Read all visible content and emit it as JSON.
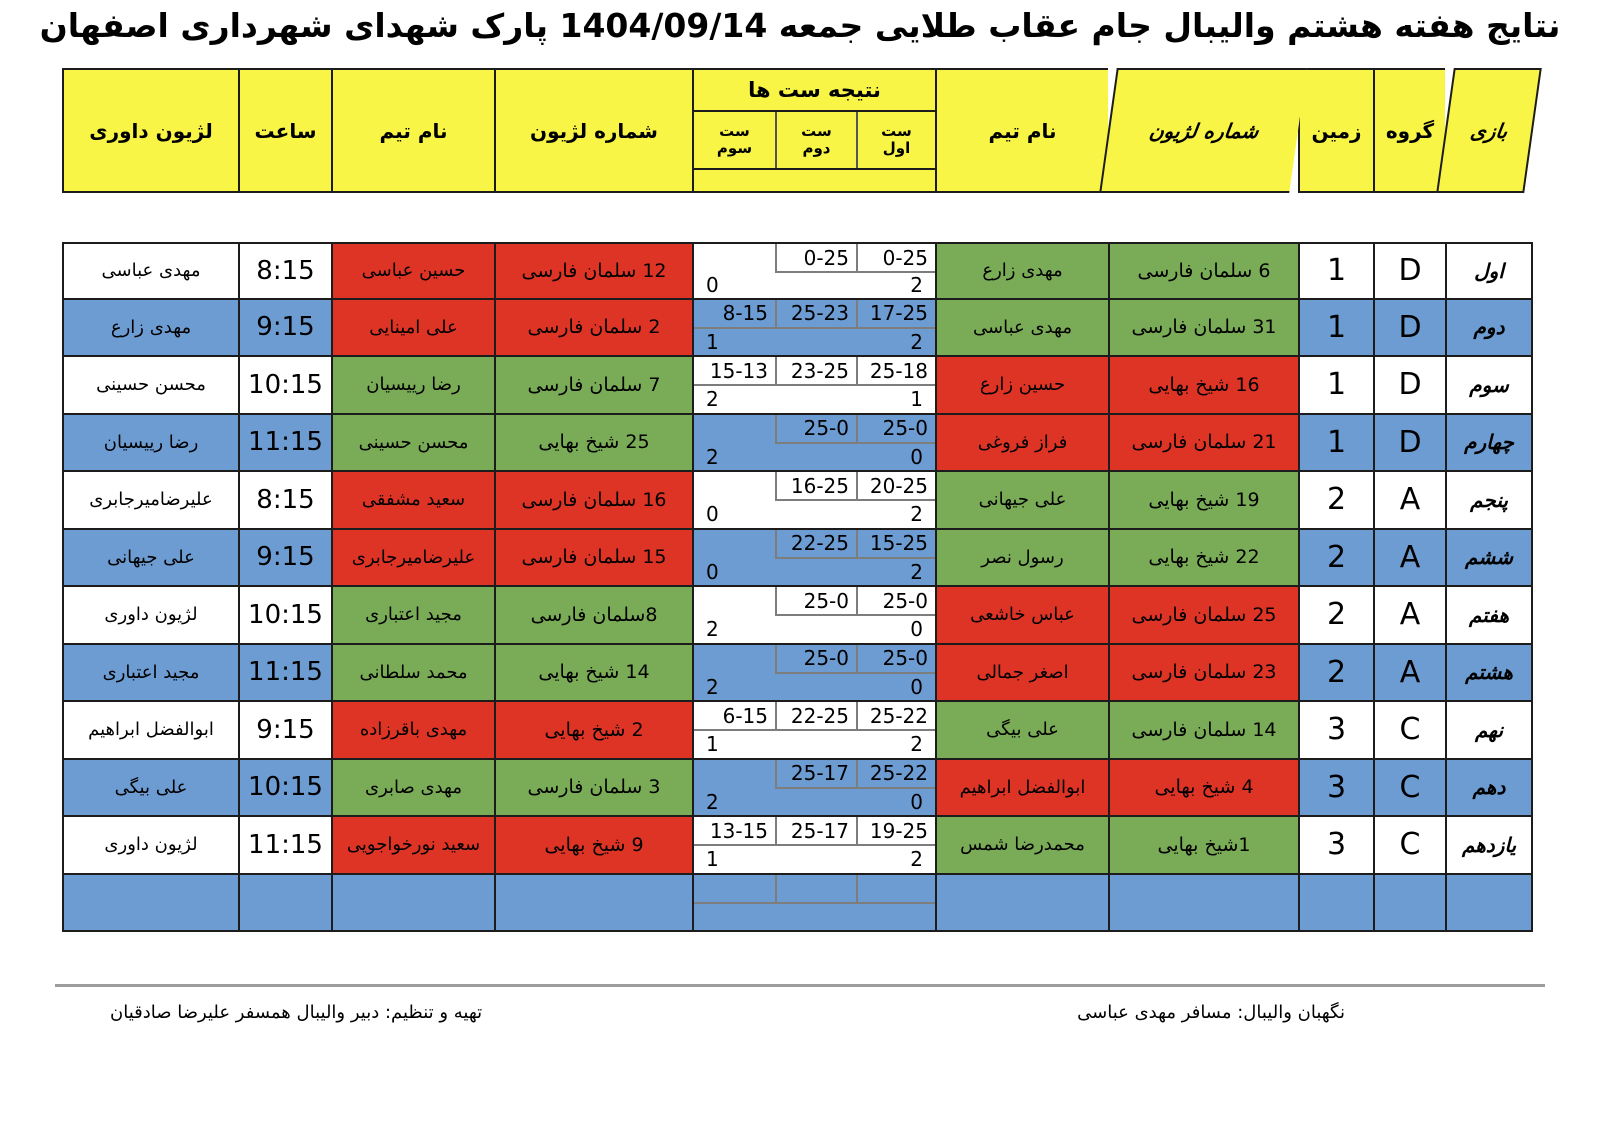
{
  "title": "نتایج هفته هشتم والیبال جام عقاب طلایی جمعه 1404/09/14 پارک شهدای شهرداری اصفهان",
  "colors": {
    "header_yellow": "#F8F546",
    "win_green": "#7AAB57",
    "lose_red": "#DE3426",
    "band_blue": "#6D9CD3",
    "band_white": "#FFFFFF"
  },
  "table": {
    "headers": {
      "referee_legion": "لژیون داوری",
      "time": "ساعت",
      "team_left": "نام تیم",
      "legion_left": "شماره لژیون",
      "sets_title": "نتیجه ست ها",
      "set_third": "ست سوم",
      "set_second": "ست دوم",
      "set_first": "ست اول",
      "team_right": "نام تیم",
      "legion_right": "شماره لژیون",
      "court": "زمین",
      "group": "گروه",
      "game": "بازی"
    },
    "rows": [
      {
        "game": "اول",
        "group": "D",
        "court": "1",
        "right_legion": "6 سلمان فارسی",
        "right_team": "مهدی زارع",
        "right_color": "green",
        "set1": "0-25",
        "set2": "0-25",
        "set3": "",
        "right_total": "2",
        "left_total": "0",
        "left_legion": "12 سلمان فارسی",
        "left_team": "حسین عباسی",
        "left_color": "red",
        "time": "8:15",
        "referee": "مهدی عباسی",
        "band": "white"
      },
      {
        "game": "دوم",
        "group": "D",
        "court": "1",
        "right_legion": "31 سلمان فارسی",
        "right_team": "مهدی عباسی",
        "right_color": "green",
        "set1": "17-25",
        "set2": "25-23",
        "set3": "8-15",
        "right_total": "2",
        "left_total": "1",
        "left_legion": "2 سلمان فارسی",
        "left_team": "علی امینایی",
        "left_color": "red",
        "time": "9:15",
        "referee": "مهدی زارع",
        "band": "blue"
      },
      {
        "game": "سوم",
        "group": "D",
        "court": "1",
        "right_legion": "16 شیخ بهایی",
        "right_team": "حسین زارع",
        "right_color": "red",
        "set1": "25-18",
        "set2": "23-25",
        "set3": "15-13",
        "right_total": "1",
        "left_total": "2",
        "left_legion": "7 سلمان فارسی",
        "left_team": "رضا رییسیان",
        "left_color": "green",
        "time": "10:15",
        "referee": "محسن حسینی",
        "band": "white"
      },
      {
        "game": "چهارم",
        "group": "D",
        "court": "1",
        "right_legion": "21 سلمان فارسی",
        "right_team": "فراز فروغی",
        "right_color": "red",
        "set1": "25-0",
        "set2": "25-0",
        "set3": "",
        "right_total": "0",
        "left_total": "2",
        "left_legion": "25 شیخ بهایی",
        "left_team": "محسن حسینی",
        "left_color": "green",
        "time": "11:15",
        "referee": "رضا رییسیان",
        "band": "blue"
      },
      {
        "game": "پنجم",
        "group": "A",
        "court": "2",
        "right_legion": "19 شیخ بهایی",
        "right_team": "علی جیهانی",
        "right_color": "green",
        "set1": "20-25",
        "set2": "16-25",
        "set3": "",
        "right_total": "2",
        "left_total": "0",
        "left_legion": "16 سلمان فارسی",
        "left_team": "سعید مشفقی",
        "left_color": "red",
        "time": "8:15",
        "referee": "علیرضامیرجابری",
        "band": "white"
      },
      {
        "game": "ششم",
        "group": "A",
        "court": "2",
        "right_legion": "22 شیخ بهایی",
        "right_team": "رسول نصر",
        "right_color": "green",
        "set1": "15-25",
        "set2": "22-25",
        "set3": "",
        "right_total": "2",
        "left_total": "0",
        "left_legion": "15 سلمان فارسی",
        "left_team": "علیرضامیرجابری",
        "left_color": "red",
        "time": "9:15",
        "referee": "علی جیهانی",
        "band": "blue"
      },
      {
        "game": "هفتم",
        "group": "A",
        "court": "2",
        "right_legion": "25 سلمان فارسی",
        "right_team": "عباس خاشعی",
        "right_color": "red",
        "set1": "25-0",
        "set2": "25-0",
        "set3": "",
        "right_total": "0",
        "left_total": "2",
        "left_legion": "8سلمان فارسی",
        "left_team": "مجید اعتباری",
        "left_color": "green",
        "time": "10:15",
        "referee": "لژیون داوری",
        "band": "white"
      },
      {
        "game": "هشتم",
        "group": "A",
        "court": "2",
        "right_legion": "23 سلمان فارسی",
        "right_team": "اصغر جمالی",
        "right_color": "red",
        "set1": "25-0",
        "set2": "25-0",
        "set3": "",
        "right_total": "0",
        "left_total": "2",
        "left_legion": "14 شیخ بهایی",
        "left_team": "محمد سلطانی",
        "left_color": "green",
        "time": "11:15",
        "referee": "مجید اعتباری",
        "band": "blue"
      },
      {
        "game": "نهم",
        "group": "C",
        "court": "3",
        "right_legion": "14 سلمان فارسی",
        "right_team": "علی بیگی",
        "right_color": "green",
        "set1": "25-22",
        "set2": "22-25",
        "set3": "6-15",
        "right_total": "2",
        "left_total": "1",
        "left_legion": "2 شیخ بهایی",
        "left_team": "مهدی باقرزاده",
        "left_color": "red",
        "time": "9:15",
        "referee": "ابوالفضل ابراهیم",
        "band": "white"
      },
      {
        "game": "دهم",
        "group": "C",
        "court": "3",
        "right_legion": "4 شیخ بهایی",
        "right_team": "ابوالفضل ابراهیم",
        "right_color": "red",
        "set1": "25-22",
        "set2": "25-17",
        "set3": "",
        "right_total": "0",
        "left_total": "2",
        "left_legion": "3 سلمان فارسی",
        "left_team": "مهدی صابری",
        "left_color": "green",
        "time": "10:15",
        "referee": "علی بیگی",
        "band": "blue"
      },
      {
        "game": "یازدهم",
        "group": "C",
        "court": "3",
        "right_legion": "1شیخ بهایی",
        "right_team": "محمدرضا شمس",
        "right_color": "green",
        "set1": "19-25",
        "set2": "25-17",
        "set3": "13-15",
        "right_total": "2",
        "left_total": "1",
        "left_legion": "9 شیخ بهایی",
        "left_team": "سعید نورخواجویی",
        "left_color": "red",
        "time": "11:15",
        "referee": "لژیون داوری",
        "band": "white"
      },
      {
        "game": "",
        "group": "",
        "court": "",
        "right_legion": "",
        "right_team": "",
        "right_color": "",
        "set1": "",
        "set2": "",
        "set3": "",
        "right_total": "",
        "left_total": "",
        "left_legion": "",
        "left_team": "",
        "left_color": "",
        "time": "",
        "referee": "",
        "band": "blue"
      }
    ]
  },
  "footer": {
    "right_note": "نگهبان والیبال: مسافر مهدی عباسی",
    "left_note": "تهیه و تنظیم: دبیر والیبال همسفر علیرضا صادقیان"
  }
}
